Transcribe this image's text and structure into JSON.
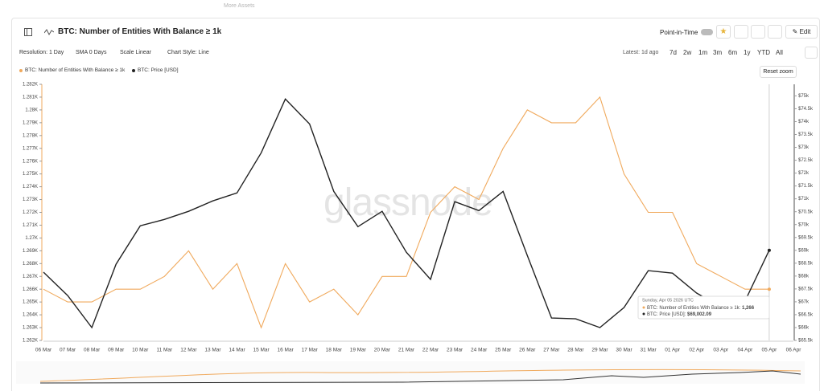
{
  "ui": {
    "more_assets": "More Assets",
    "point_in_time": "Point-in-Time",
    "edit": "Edit",
    "controls": [
      "Resolution: 1 Day",
      "SMA 0 Days",
      "Scale Linear",
      "Chart Style: Line"
    ],
    "latest": "Latest: 1d ago",
    "ranges": [
      "7d",
      "2w",
      "1m",
      "3m",
      "6m",
      "1y",
      "YTD",
      "All"
    ],
    "reset_zoom": "Reset zoom",
    "watermark": "glassnode"
  },
  "chart_data": {
    "type": "line",
    "title": "BTC: Number of Entities With Balance ≥ 1k",
    "categories": [
      "06 Mar",
      "07 Mar",
      "08 Mar",
      "09 Mar",
      "10 Mar",
      "11 Mar",
      "12 Mar",
      "13 Mar",
      "14 Mar",
      "15 Mar",
      "16 Mar",
      "17 Mar",
      "18 Mar",
      "19 Mar",
      "20 Mar",
      "21 Mar",
      "22 Mar",
      "23 Mar",
      "24 Mar",
      "25 Mar",
      "26 Mar",
      "27 Mar",
      "28 Mar",
      "29 Mar",
      "30 Mar",
      "31 Mar",
      "01 Apr",
      "02 Apr",
      "03 Apr",
      "04 Apr",
      "05 Apr",
      "06 Apr"
    ],
    "series": [
      {
        "name": "BTC: Number of Entities With Balance ≥ 1k",
        "color": "#f0a95c",
        "values": [
          1266,
          1265,
          1265,
          1266,
          1266,
          1267,
          1269,
          1266,
          1268,
          1263,
          1268,
          1265,
          1266,
          1264,
          1267,
          1267,
          1272,
          1274,
          1273,
          1277,
          1280,
          1279,
          1279,
          1281,
          1275,
          1272,
          1272,
          1268,
          1267,
          1266,
          1266,
          null
        ]
      },
      {
        "name": "BTC: Price [USD]",
        "color": "#222222",
        "axis": "y2",
        "values": [
          68150,
          67245,
          66000,
          68460,
          69955,
          70200,
          70515,
          70920,
          71230,
          72790,
          74880,
          73910,
          71290,
          69920,
          70515,
          68925,
          67870,
          70890,
          70545,
          71290,
          68800,
          66370,
          66340,
          66000,
          66780,
          68210,
          68115,
          67340,
          66800,
          67030,
          69002.09,
          null
        ]
      }
    ],
    "ylim": [
      1262,
      1282
    ],
    "yticks": [
      {
        "value": 1262,
        "label": "1.262K"
      },
      {
        "value": 1263,
        "label": "1.263K"
      },
      {
        "value": 1264,
        "label": "1.264K"
      },
      {
        "value": 1265,
        "label": "1.265K"
      },
      {
        "value": 1266,
        "label": "1.266K"
      },
      {
        "value": 1267,
        "label": "1.267K"
      },
      {
        "value": 1268,
        "label": "1.268K"
      },
      {
        "value": 1269,
        "label": "1.269K"
      },
      {
        "value": 1270,
        "label": "1.27K"
      },
      {
        "value": 1271,
        "label": "1.271K"
      },
      {
        "value": 1272,
        "label": "1.272K"
      },
      {
        "value": 1273,
        "label": "1.273K"
      },
      {
        "value": 1274,
        "label": "1.274K"
      },
      {
        "value": 1275,
        "label": "1.275K"
      },
      {
        "value": 1276,
        "label": "1.276K"
      },
      {
        "value": 1277,
        "label": "1.277K"
      },
      {
        "value": 1278,
        "label": "1.278K"
      },
      {
        "value": 1279,
        "label": "1.279K"
      },
      {
        "value": 1280,
        "label": "1.28K"
      },
      {
        "value": 1281,
        "label": "1.281K"
      },
      {
        "value": 1282,
        "label": "1.282K"
      }
    ],
    "y2lim": [
      65500,
      75450
    ],
    "y2ticks": [
      {
        "value": 65500,
        "label": "$65.5k"
      },
      {
        "value": 66000,
        "label": "$66k"
      },
      {
        "value": 66500,
        "label": "$66.5k"
      },
      {
        "value": 67000,
        "label": "$67k"
      },
      {
        "value": 67500,
        "label": "$67.5k"
      },
      {
        "value": 68000,
        "label": "$68k"
      },
      {
        "value": 68500,
        "label": "$68.5k"
      },
      {
        "value": 69000,
        "label": "$69k"
      },
      {
        "value": 69500,
        "label": "$69.5k"
      },
      {
        "value": 70000,
        "label": "$70k"
      },
      {
        "value": 70500,
        "label": "$70.5k"
      },
      {
        "value": 71000,
        "label": "$71k"
      },
      {
        "value": 71500,
        "label": "$71.5k"
      },
      {
        "value": 72000,
        "label": "$72k"
      },
      {
        "value": 72500,
        "label": "$72.5k"
      },
      {
        "value": 73000,
        "label": "$73k"
      },
      {
        "value": 73500,
        "label": "$73.5k"
      },
      {
        "value": 74000,
        "label": "$74k"
      },
      {
        "value": 74500,
        "label": "$74.5k"
      },
      {
        "value": 75000,
        "label": "$75k"
      }
    ],
    "tooltip": {
      "title": "Sunday, Apr 05 2026 UTC",
      "labels": [
        "1,266",
        "$69,002.09"
      ]
    },
    "legend": "top-left"
  }
}
